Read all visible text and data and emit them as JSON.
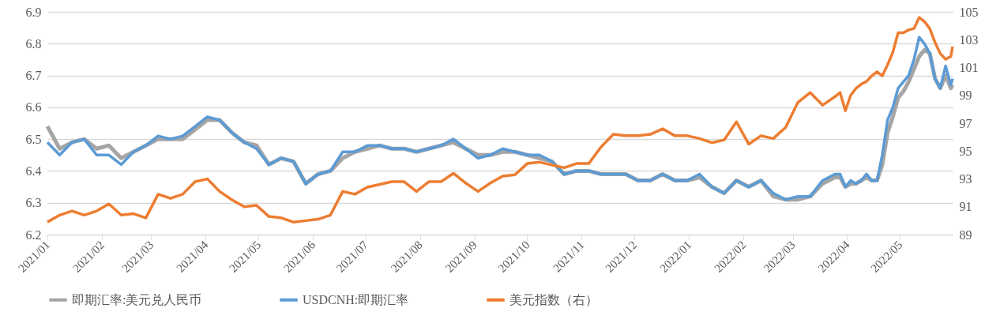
{
  "chart_data": {
    "type": "line",
    "x": [
      "2021-01-01",
      "2021-01-08",
      "2021-01-15",
      "2021-01-22",
      "2021-01-29",
      "2021-02-05",
      "2021-02-12",
      "2021-02-19",
      "2021-02-26",
      "2021-03-05",
      "2021-03-12",
      "2021-03-19",
      "2021-03-26",
      "2021-04-02",
      "2021-04-09",
      "2021-04-16",
      "2021-04-23",
      "2021-04-30",
      "2021-05-07",
      "2021-05-14",
      "2021-05-21",
      "2021-05-28",
      "2021-06-04",
      "2021-06-11",
      "2021-06-18",
      "2021-06-25",
      "2021-07-02",
      "2021-07-09",
      "2021-07-16",
      "2021-07-23",
      "2021-07-30",
      "2021-08-06",
      "2021-08-13",
      "2021-08-20",
      "2021-08-27",
      "2021-09-03",
      "2021-09-10",
      "2021-09-17",
      "2021-09-24",
      "2021-10-01",
      "2021-10-08",
      "2021-10-15",
      "2021-10-22",
      "2021-10-29",
      "2021-11-05",
      "2021-11-12",
      "2021-11-19",
      "2021-11-26",
      "2021-12-03",
      "2021-12-10",
      "2021-12-17",
      "2021-12-24",
      "2021-12-31",
      "2022-01-07",
      "2022-01-14",
      "2022-01-21",
      "2022-01-28",
      "2022-02-04",
      "2022-02-11",
      "2022-02-18",
      "2022-02-25",
      "2022-03-04",
      "2022-03-11",
      "2022-03-18",
      "2022-03-25",
      "2022-03-28",
      "2022-03-31",
      "2022-04-03",
      "2022-04-06",
      "2022-04-09",
      "2022-04-12",
      "2022-04-15",
      "2022-04-18",
      "2022-04-21",
      "2022-04-24",
      "2022-04-27",
      "2022-04-30",
      "2022-05-03",
      "2022-05-06",
      "2022-05-09",
      "2022-05-12",
      "2022-05-15",
      "2022-05-18",
      "2022-05-21",
      "2022-05-24",
      "2022-05-27",
      "2022-05-30",
      "2022-05-31"
    ],
    "series": [
      {
        "name": "即期汇率:美元兑人民币",
        "color": "#a5a5a5",
        "values": [
          6.54,
          6.47,
          6.49,
          6.5,
          6.47,
          6.48,
          6.44,
          6.46,
          6.48,
          6.5,
          6.5,
          6.5,
          6.53,
          6.56,
          6.56,
          6.52,
          6.49,
          6.48,
          6.42,
          6.44,
          6.43,
          6.36,
          6.39,
          6.4,
          6.44,
          6.46,
          6.47,
          6.48,
          6.47,
          6.47,
          6.46,
          6.47,
          6.48,
          6.49,
          6.47,
          6.45,
          6.45,
          6.46,
          6.46,
          6.45,
          6.44,
          6.43,
          6.39,
          6.4,
          6.4,
          6.39,
          6.39,
          6.39,
          6.37,
          6.37,
          6.39,
          6.37,
          6.37,
          6.38,
          6.35,
          6.33,
          6.37,
          6.35,
          6.37,
          6.32,
          6.31,
          6.31,
          6.32,
          6.36,
          6.38,
          6.38,
          6.35,
          6.36,
          6.36,
          6.37,
          6.38,
          6.37,
          6.37,
          6.42,
          6.52,
          6.57,
          6.63,
          6.65,
          6.68,
          6.72,
          6.76,
          6.78,
          6.77,
          6.69,
          6.66,
          6.7,
          6.66,
          6.67
        ]
      },
      {
        "name": "USDCNH:即期汇率",
        "color": "#5b9bd5",
        "values": [
          6.49,
          6.45,
          6.49,
          6.5,
          6.45,
          6.45,
          6.42,
          6.46,
          6.48,
          6.51,
          6.5,
          6.51,
          6.54,
          6.57,
          6.56,
          6.52,
          6.49,
          6.47,
          6.42,
          6.44,
          6.43,
          6.36,
          6.39,
          6.4,
          6.46,
          6.46,
          6.48,
          6.48,
          6.47,
          6.47,
          6.46,
          6.47,
          6.48,
          6.5,
          6.47,
          6.44,
          6.45,
          6.47,
          6.46,
          6.45,
          6.45,
          6.43,
          6.39,
          6.4,
          6.4,
          6.39,
          6.39,
          6.39,
          6.37,
          6.37,
          6.39,
          6.37,
          6.37,
          6.39,
          6.35,
          6.33,
          6.37,
          6.35,
          6.37,
          6.33,
          6.31,
          6.32,
          6.32,
          6.37,
          6.39,
          6.39,
          6.35,
          6.37,
          6.36,
          6.37,
          6.39,
          6.37,
          6.37,
          6.45,
          6.56,
          6.6,
          6.66,
          6.68,
          6.7,
          6.75,
          6.82,
          6.8,
          6.77,
          6.69,
          6.66,
          6.73,
          6.67,
          6.69
        ]
      },
      {
        "name": "美元指数（右）",
        "color": "#ed7d31",
        "axis": "y2",
        "values": [
          89.9,
          90.4,
          90.7,
          90.4,
          90.7,
          91.2,
          90.4,
          90.5,
          90.2,
          91.9,
          91.6,
          91.9,
          92.8,
          93,
          92.1,
          91.5,
          91,
          91.1,
          90.3,
          90.2,
          89.9,
          90,
          90.1,
          90.4,
          92.1,
          91.9,
          92.4,
          92.6,
          92.8,
          92.8,
          92.1,
          92.8,
          92.8,
          93.4,
          92.7,
          92.1,
          92.7,
          93.2,
          93.3,
          94.1,
          94.2,
          94,
          93.8,
          94.1,
          94.1,
          95.3,
          96.2,
          96.1,
          96.1,
          96.2,
          96.6,
          96.1,
          96.1,
          95.9,
          95.6,
          95.8,
          97.1,
          95.5,
          96.1,
          95.9,
          96.7,
          98.5,
          99.2,
          98.3,
          98.9,
          99.2,
          97.9,
          99,
          99.5,
          99.8,
          100,
          100.4,
          100.7,
          100.4,
          101.2,
          102.1,
          103.5,
          103.5,
          103.7,
          103.8,
          104.6,
          104.3,
          103.8,
          102.8,
          102,
          101.6,
          101.8,
          102.5
        ]
      }
    ],
    "xlim": [
      "2021-01-01",
      "2022-05-31"
    ],
    "xticks": [
      {
        "value": "2021-01-01",
        "label": "2021/01"
      },
      {
        "value": "2021-02-01",
        "label": "2021/02"
      },
      {
        "value": "2021-03-01",
        "label": "2021/03"
      },
      {
        "value": "2021-04-01",
        "label": "2021/04"
      },
      {
        "value": "2021-05-01",
        "label": "2021/05"
      },
      {
        "value": "2021-06-01",
        "label": "2021/06"
      },
      {
        "value": "2021-07-01",
        "label": "2021/07"
      },
      {
        "value": "2021-08-01",
        "label": "2021/08"
      },
      {
        "value": "2021-09-01",
        "label": "2021/09"
      },
      {
        "value": "2021-10-01",
        "label": "2021/10"
      },
      {
        "value": "2021-11-01",
        "label": "2021/11"
      },
      {
        "value": "2021-12-01",
        "label": "2021/12"
      },
      {
        "value": "2022-01-01",
        "label": "2022/01"
      },
      {
        "value": "2022-02-01",
        "label": "2022/02"
      },
      {
        "value": "2022-03-01",
        "label": "2022/03"
      },
      {
        "value": "2022-04-01",
        "label": "2022/04"
      },
      {
        "value": "2022-05-01",
        "label": "2022/05"
      }
    ],
    "ylim": [
      6.2,
      6.9
    ],
    "yticks": [
      6.2,
      6.3,
      6.4,
      6.5,
      6.6,
      6.7,
      6.8,
      6.9
    ],
    "y2lim": [
      89,
      105
    ],
    "y2ticks": [
      89,
      91,
      93,
      95,
      97,
      99,
      101,
      103,
      105
    ],
    "grid": "y",
    "legend": "bottom"
  }
}
